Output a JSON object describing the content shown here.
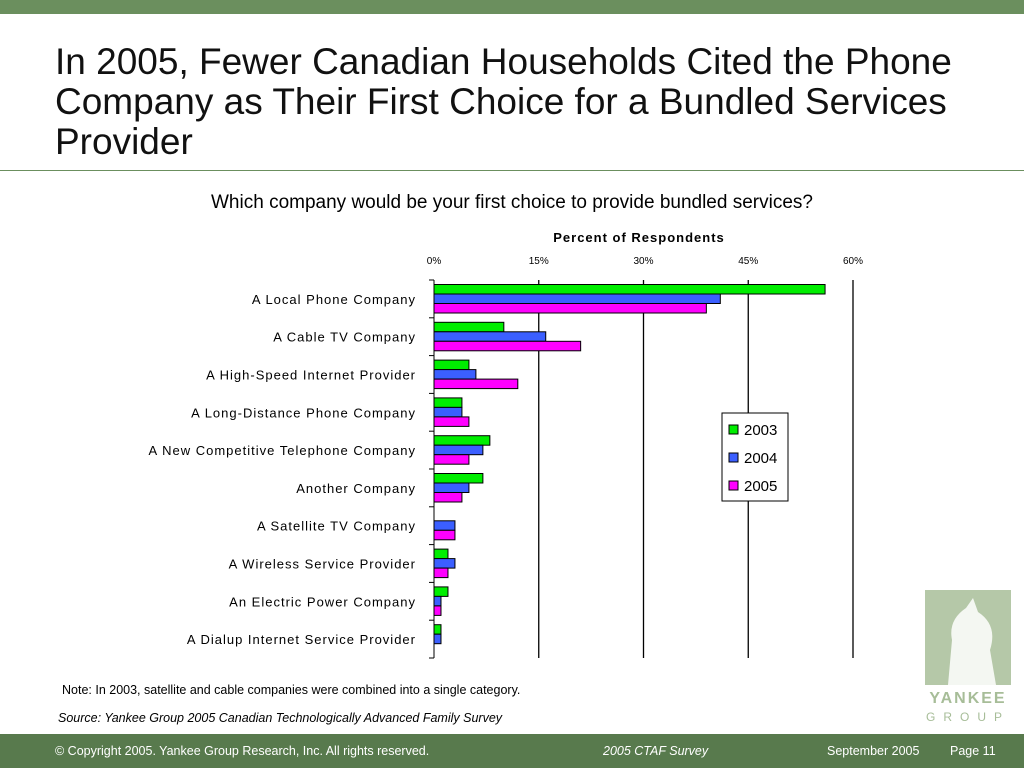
{
  "slide": {
    "title": "In 2005, Fewer Canadian Households Cited the Phone Company as Their First Choice for a Bundled Services Provider",
    "question": "Which company would be your first choice to provide bundled services?",
    "note": "Note: In 2003, satellite and cable companies were combined into a single category.",
    "source": "Source: Yankee Group 2005 Canadian Technologically Advanced Family Survey"
  },
  "footer": {
    "copyright": "© Copyright 2005. Yankee Group Research, Inc.  All rights reserved.",
    "survey": "2005 CTAF Survey",
    "date": "September 2005",
    "page": "Page 11"
  },
  "logo": {
    "line1": "YANKEE",
    "line2": "GROUP"
  },
  "colors": {
    "2003": "#00ee00",
    "2004": "#3b5fff",
    "2005": "#ff00ff",
    "brand": "#6b8f5e",
    "footer": "#587a4d"
  },
  "chart_data": {
    "type": "bar",
    "orientation": "horizontal",
    "title": "",
    "xlabel": "Percent of Respondents",
    "xlim": [
      0,
      60
    ],
    "ticks": [
      "0%",
      "15%",
      "30%",
      "45%",
      "60%"
    ],
    "tick_values": [
      0,
      15,
      30,
      45,
      60
    ],
    "grid": true,
    "legend_position": "right",
    "categories": [
      "A Local Phone Company",
      "A Cable TV Company",
      "A High-Speed Internet Provider",
      "A Long-Distance Phone Company",
      "A New Competitive Telephone Company",
      "Another Company",
      "A Satellite TV Company",
      "A Wireless Service Provider",
      "An Electric Power Company",
      "A Dialup Internet Service Provider"
    ],
    "series": [
      {
        "name": "2003",
        "color": "#00ee00",
        "values": [
          56,
          10,
          5,
          4,
          8,
          7,
          null,
          2,
          2,
          1
        ]
      },
      {
        "name": "2004",
        "color": "#3b5fff",
        "values": [
          41,
          16,
          6,
          4,
          7,
          5,
          3,
          3,
          1,
          1
        ]
      },
      {
        "name": "2005",
        "color": "#ff00ff",
        "values": [
          39,
          21,
          12,
          5,
          5,
          4,
          3,
          2,
          1,
          0
        ]
      }
    ]
  }
}
